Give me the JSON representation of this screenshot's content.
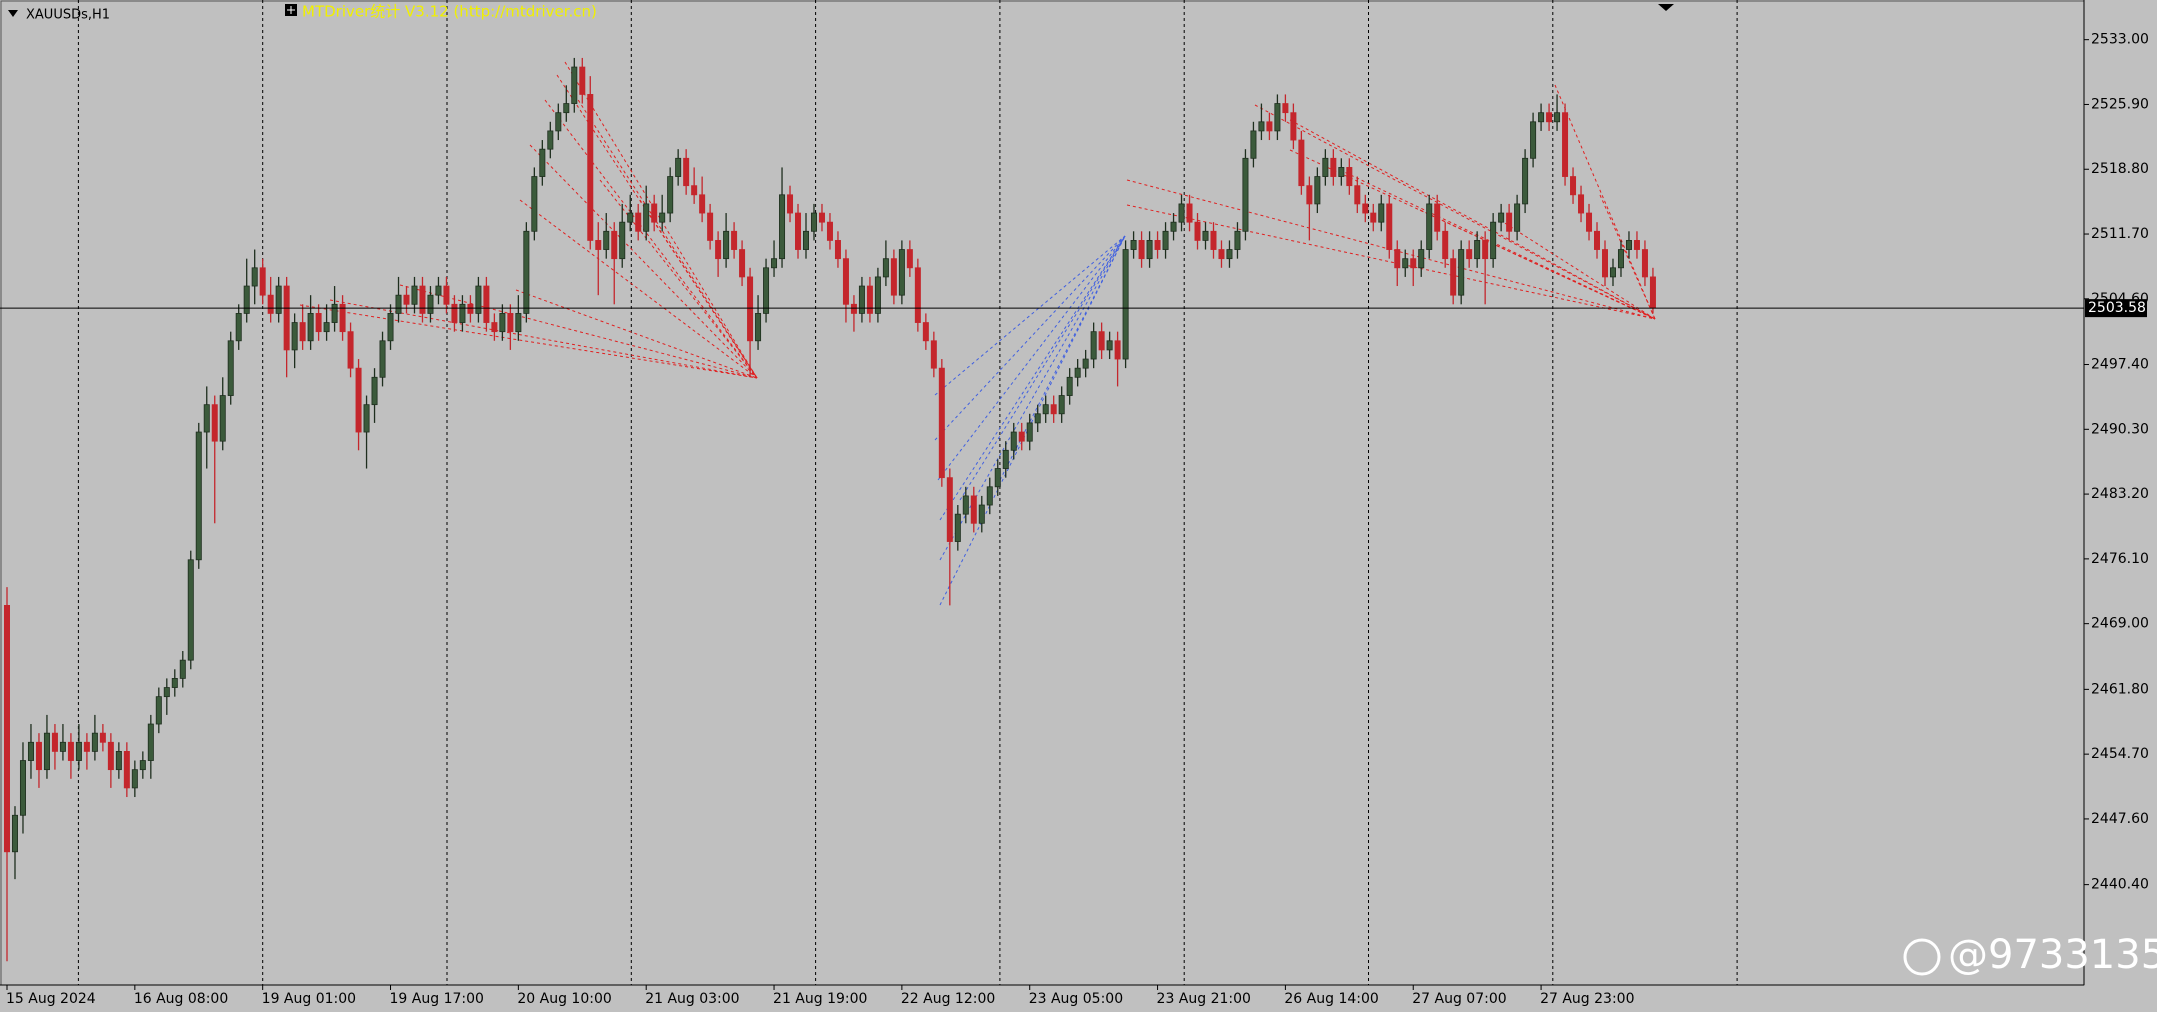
{
  "chart_data": {
    "type": "candlestick",
    "symbol": "XAUUSDs,H1",
    "indicator_label": "MTDriver统计  V3.12 (http://mtdriver.cn)",
    "watermark": "@9733135",
    "up_color": "#3b5a3b",
    "down_color": "#c4262c",
    "categories": [
      "15 Aug 2024",
      null,
      null,
      null,
      null,
      null,
      null,
      null,
      null,
      null,
      null,
      null,
      null,
      null,
      null,
      null,
      "16 Aug 08:00",
      null,
      null,
      null,
      null,
      null,
      null,
      null,
      null,
      null,
      null,
      null,
      null,
      null,
      null,
      null,
      "19 Aug 01:00",
      null,
      null,
      null,
      null,
      null,
      null,
      null,
      null,
      null,
      null,
      null,
      null,
      null,
      null,
      null,
      "19 Aug 17:00",
      null,
      null,
      null,
      null,
      null,
      null,
      null,
      null,
      null,
      null,
      null,
      null,
      null,
      null,
      null,
      "20 Aug 10:00",
      null,
      null,
      null,
      null,
      null,
      null,
      null,
      null,
      null,
      null,
      null,
      null,
      null,
      null,
      null,
      "21 Aug 03:00",
      null,
      null,
      null,
      null,
      null,
      null,
      null,
      null,
      null,
      null,
      null,
      null,
      null,
      null,
      null,
      "21 Aug 19:00",
      null,
      null,
      null,
      null,
      null,
      null,
      null,
      null,
      null,
      null,
      null,
      null,
      null,
      null,
      null,
      "22 Aug 12:00",
      null,
      null,
      null,
      null,
      null,
      null,
      null,
      null,
      null,
      null,
      null,
      null,
      null,
      null,
      null,
      "23 Aug 05:00",
      null,
      null,
      null,
      null,
      null,
      null,
      null,
      null,
      null,
      null,
      null,
      null,
      null,
      null,
      null,
      "23 Aug 21:00",
      null,
      null,
      null,
      null,
      null,
      null,
      null,
      null,
      null,
      null,
      null,
      null,
      null,
      null,
      null,
      "26 Aug 14:00",
      null,
      null,
      null,
      null,
      null,
      null,
      null,
      null,
      null,
      null,
      null,
      null,
      null,
      null,
      null,
      "27 Aug 07:00",
      null,
      null,
      null,
      null,
      null,
      null,
      null,
      null,
      null,
      null,
      null,
      null,
      null,
      null,
      null,
      "27 Aug 23:00",
      null,
      null,
      null,
      null,
      null,
      null,
      null,
      null,
      null,
      null,
      null,
      null,
      null,
      null
    ],
    "ohlc": [
      [
        2471,
        2473,
        2432,
        2444
      ],
      [
        2444,
        2449,
        2441,
        2448
      ],
      [
        2448,
        2456,
        2446,
        2454
      ],
      [
        2454,
        2458,
        2452,
        2456
      ],
      [
        2456,
        2457,
        2451,
        2453
      ],
      [
        2453,
        2459,
        2452,
        2457
      ],
      [
        2457,
        2458,
        2453,
        2455
      ],
      [
        2455,
        2458,
        2454,
        2456
      ],
      [
        2456,
        2457,
        2452,
        2454
      ],
      [
        2454,
        2458,
        2453,
        2456
      ],
      [
        2456,
        2457,
        2453,
        2455
      ],
      [
        2455,
        2459,
        2454,
        2457
      ],
      [
        2457,
        2458,
        2455,
        2456
      ],
      [
        2456,
        2457,
        2451,
        2453
      ],
      [
        2453,
        2456,
        2452,
        2455
      ],
      [
        2455,
        2456,
        2450,
        2451
      ],
      [
        2451,
        2454,
        2450,
        2453
      ],
      [
        2453,
        2455,
        2452,
        2454
      ],
      [
        2454,
        2459,
        2452,
        2458
      ],
      [
        2458,
        2462,
        2457,
        2461
      ],
      [
        2461,
        2463,
        2459,
        2462
      ],
      [
        2462,
        2464,
        2461,
        2463
      ],
      [
        2463,
        2466,
        2462,
        2465
      ],
      [
        2465,
        2477,
        2464,
        2476
      ],
      [
        2476,
        2491,
        2475,
        2490
      ],
      [
        2490,
        2495,
        2486,
        2493
      ],
      [
        2493,
        2494,
        2480,
        2489
      ],
      [
        2489,
        2496,
        2488,
        2494
      ],
      [
        2494,
        2501,
        2493,
        2500
      ],
      [
        2500,
        2504,
        2499,
        2503
      ],
      [
        2503,
        2509,
        2502,
        2506
      ],
      [
        2506,
        2510,
        2504,
        2508
      ],
      [
        2508,
        2509,
        2504,
        2505
      ],
      [
        2505,
        2507,
        2502,
        2503
      ],
      [
        2503,
        2507,
        2502,
        2506
      ],
      [
        2506,
        2507,
        2496,
        2499
      ],
      [
        2499,
        2503,
        2497,
        2502
      ],
      [
        2502,
        2504,
        2499,
        2500
      ],
      [
        2500,
        2505,
        2499,
        2503
      ],
      [
        2503,
        2504,
        2500,
        2501
      ],
      [
        2501,
        2504,
        2500,
        2502
      ],
      [
        2502,
        2506,
        2501,
        2504
      ],
      [
        2504,
        2505,
        2500,
        2501
      ],
      [
        2501,
        2502,
        2496,
        2497
      ],
      [
        2497,
        2498,
        2488,
        2490
      ],
      [
        2490,
        2494,
        2486,
        2493
      ],
      [
        2493,
        2497,
        2491,
        2496
      ],
      [
        2496,
        2501,
        2495,
        2500
      ],
      [
        2500,
        2504,
        2499,
        2503
      ],
      [
        2503,
        2507,
        2502,
        2505
      ],
      [
        2505,
        2506,
        2503,
        2504
      ],
      [
        2504,
        2507,
        2503,
        2506
      ],
      [
        2506,
        2507,
        2502,
        2503
      ],
      [
        2503,
        2506,
        2502,
        2505
      ],
      [
        2505,
        2507,
        2504,
        2506
      ],
      [
        2506,
        2507,
        2503,
        2504
      ],
      [
        2504,
        2505,
        2501,
        2502
      ],
      [
        2502,
        2505,
        2501,
        2504
      ],
      [
        2504,
        2505,
        2502,
        2503
      ],
      [
        2503,
        2507,
        2502,
        2506
      ],
      [
        2506,
        2507,
        2501,
        2502
      ],
      [
        2502,
        2503,
        2500,
        2501
      ],
      [
        2501,
        2504,
        2500,
        2503
      ],
      [
        2503,
        2504,
        2499,
        2501
      ],
      [
        2501,
        2505,
        2500,
        2503
      ],
      [
        2503,
        2513,
        2502,
        2512
      ],
      [
        2512,
        2519,
        2511,
        2518
      ],
      [
        2518,
        2522,
        2517,
        2521
      ],
      [
        2521,
        2524,
        2520,
        2523
      ],
      [
        2523,
        2526,
        2522,
        2525
      ],
      [
        2525,
        2528,
        2524,
        2526
      ],
      [
        2526,
        2531,
        2525,
        2530
      ],
      [
        2530,
        2531,
        2526,
        2527
      ],
      [
        2527,
        2529,
        2510,
        2511
      ],
      [
        2511,
        2513,
        2505,
        2510
      ],
      [
        2510,
        2514,
        2509,
        2512
      ],
      [
        2512,
        2513,
        2504,
        2509
      ],
      [
        2509,
        2515,
        2508,
        2513
      ],
      [
        2513,
        2516,
        2512,
        2514
      ],
      [
        2514,
        2515,
        2511,
        2512
      ],
      [
        2512,
        2517,
        2511,
        2515
      ],
      [
        2515,
        2516,
        2512,
        2513
      ],
      [
        2513,
        2516,
        2512,
        2514
      ],
      [
        2514,
        2519,
        2513,
        2518
      ],
      [
        2518,
        2521,
        2517,
        2520
      ],
      [
        2520,
        2521,
        2516,
        2517
      ],
      [
        2517,
        2519,
        2515,
        2516
      ],
      [
        2516,
        2518,
        2513,
        2514
      ],
      [
        2514,
        2515,
        2510,
        2511
      ],
      [
        2511,
        2512,
        2507,
        2509
      ],
      [
        2509,
        2514,
        2508,
        2512
      ],
      [
        2512,
        2513,
        2509,
        2510
      ],
      [
        2510,
        2511,
        2506,
        2507
      ],
      [
        2507,
        2508,
        2496,
        2500
      ],
      [
        2500,
        2505,
        2499,
        2503
      ],
      [
        2503,
        2509,
        2502,
        2508
      ],
      [
        2508,
        2511,
        2507,
        2509
      ],
      [
        2509,
        2519,
        2508,
        2516
      ],
      [
        2516,
        2517,
        2513,
        2514
      ],
      [
        2514,
        2515,
        2509,
        2510
      ],
      [
        2510,
        2514,
        2509,
        2512
      ],
      [
        2512,
        2515,
        2511,
        2514
      ],
      [
        2514,
        2515,
        2512,
        2513
      ],
      [
        2513,
        2514,
        2510,
        2511
      ],
      [
        2511,
        2512,
        2508,
        2509
      ],
      [
        2509,
        2510,
        2502,
        2504
      ],
      [
        2504,
        2505,
        2501,
        2503
      ],
      [
        2503,
        2507,
        2502,
        2506
      ],
      [
        2506,
        2507,
        2502,
        2503
      ],
      [
        2503,
        2508,
        2502,
        2507
      ],
      [
        2507,
        2511,
        2506,
        2509
      ],
      [
        2509,
        2510,
        2504,
        2505
      ],
      [
        2505,
        2511,
        2504,
        2510
      ],
      [
        2510,
        2511,
        2507,
        2508
      ],
      [
        2508,
        2509,
        2501,
        2502
      ],
      [
        2502,
        2503,
        2499,
        2500
      ],
      [
        2500,
        2501,
        2496,
        2497
      ],
      [
        2497,
        2498,
        2484,
        2485
      ],
      [
        2485,
        2486,
        2471,
        2478
      ],
      [
        2478,
        2482,
        2477,
        2481
      ],
      [
        2481,
        2484,
        2480,
        2483
      ],
      [
        2483,
        2484,
        2479,
        2480
      ],
      [
        2480,
        2483,
        2479,
        2482
      ],
      [
        2482,
        2485,
        2481,
        2484
      ],
      [
        2484,
        2487,
        2483,
        2486
      ],
      [
        2486,
        2489,
        2485,
        2488
      ],
      [
        2488,
        2491,
        2487,
        2490
      ],
      [
        2490,
        2491,
        2488,
        2489
      ],
      [
        2489,
        2492,
        2488,
        2491
      ],
      [
        2491,
        2493,
        2490,
        2492
      ],
      [
        2492,
        2494,
        2491,
        2493
      ],
      [
        2493,
        2494,
        2491,
        2492
      ],
      [
        2492,
        2495,
        2491,
        2494
      ],
      [
        2494,
        2497,
        2493,
        2496
      ],
      [
        2496,
        2498,
        2495,
        2497
      ],
      [
        2497,
        2499,
        2496,
        2498
      ],
      [
        2498,
        2502,
        2497,
        2501
      ],
      [
        2501,
        2502,
        2498,
        2499
      ],
      [
        2499,
        2501,
        2498,
        2500
      ],
      [
        2500,
        2501,
        2495,
        2498
      ],
      [
        2498,
        2511,
        2497,
        2510
      ],
      [
        2510,
        2512,
        2509,
        2511
      ],
      [
        2511,
        2512,
        2508,
        2509
      ],
      [
        2509,
        2512,
        2508,
        2511
      ],
      [
        2511,
        2512,
        2509,
        2510
      ],
      [
        2510,
        2513,
        2509,
        2512
      ],
      [
        2512,
        2514,
        2511,
        2513
      ],
      [
        2513,
        2516,
        2512,
        2515
      ],
      [
        2515,
        2516,
        2512,
        2513
      ],
      [
        2513,
        2514,
        2510,
        2511
      ],
      [
        2511,
        2513,
        2510,
        2512
      ],
      [
        2512,
        2513,
        2509,
        2510
      ],
      [
        2510,
        2511,
        2508,
        2509
      ],
      [
        2509,
        2511,
        2508,
        2510
      ],
      [
        2510,
        2513,
        2509,
        2512
      ],
      [
        2512,
        2521,
        2511,
        2520
      ],
      [
        2520,
        2524,
        2519,
        2523
      ],
      [
        2523,
        2526,
        2522,
        2524
      ],
      [
        2524,
        2525,
        2522,
        2523
      ],
      [
        2523,
        2527,
        2522,
        2526
      ],
      [
        2526,
        2527,
        2524,
        2525
      ],
      [
        2525,
        2526,
        2521,
        2522
      ],
      [
        2522,
        2523,
        2516,
        2517
      ],
      [
        2517,
        2518,
        2511,
        2515
      ],
      [
        2515,
        2519,
        2514,
        2518
      ],
      [
        2518,
        2521,
        2517,
        2520
      ],
      [
        2520,
        2521,
        2517,
        2518
      ],
      [
        2518,
        2520,
        2517,
        2519
      ],
      [
        2519,
        2520,
        2516,
        2517
      ],
      [
        2517,
        2518,
        2514,
        2515
      ],
      [
        2515,
        2516,
        2513,
        2514
      ],
      [
        2514,
        2515,
        2512,
        2513
      ],
      [
        2513,
        2516,
        2512,
        2515
      ],
      [
        2515,
        2516,
        2509,
        2510
      ],
      [
        2510,
        2511,
        2506,
        2508
      ],
      [
        2508,
        2510,
        2507,
        2509
      ],
      [
        2509,
        2510,
        2506,
        2508
      ],
      [
        2508,
        2511,
        2507,
        2510
      ],
      [
        2510,
        2516,
        2509,
        2515
      ],
      [
        2515,
        2516,
        2511,
        2512
      ],
      [
        2512,
        2513,
        2508,
        2509
      ],
      [
        2509,
        2510,
        2504,
        2505
      ],
      [
        2505,
        2511,
        2504,
        2510
      ],
      [
        2510,
        2511,
        2508,
        2509
      ],
      [
        2509,
        2512,
        2508,
        2511
      ],
      [
        2511,
        2512,
        2504,
        2509
      ],
      [
        2509,
        2514,
        2508,
        2513
      ],
      [
        2513,
        2515,
        2512,
        2514
      ],
      [
        2514,
        2515,
        2511,
        2512
      ],
      [
        2512,
        2516,
        2511,
        2515
      ],
      [
        2515,
        2521,
        2514,
        2520
      ],
      [
        2520,
        2525,
        2519,
        2524
      ],
      [
        2524,
        2526,
        2523,
        2525
      ],
      [
        2525,
        2526,
        2523,
        2524
      ],
      [
        2524,
        2527,
        2523,
        2525
      ],
      [
        2525,
        2526,
        2517,
        2518
      ],
      [
        2518,
        2519,
        2515,
        2516
      ],
      [
        2516,
        2517,
        2513,
        2514
      ],
      [
        2514,
        2515,
        2511,
        2512
      ],
      [
        2512,
        2513,
        2509,
        2510
      ],
      [
        2510,
        2511,
        2506,
        2507
      ],
      [
        2507,
        2509,
        2506,
        2508
      ],
      [
        2508,
        2511,
        2507,
        2510
      ],
      [
        2510,
        2512,
        2509,
        2511
      ],
      [
        2511,
        2512,
        2509,
        2510
      ],
      [
        2510,
        2511,
        2506,
        2507
      ],
      [
        2507,
        2508,
        2503,
        2503.58
      ]
    ],
    "ylim": [
      2429.4,
      2536.8
    ],
    "yticks": [
      {
        "value": 2533.0,
        "label": "2533.00"
      },
      {
        "value": 2525.9,
        "label": "2525.90"
      },
      {
        "value": 2518.8,
        "label": "2518.80"
      },
      {
        "value": 2511.7,
        "label": "2511.70"
      },
      {
        "value": 2504.6,
        "label": "2504.60"
      },
      {
        "value": 2497.4,
        "label": "2497.40"
      },
      {
        "value": 2490.3,
        "label": "2490.30"
      },
      {
        "value": 2483.2,
        "label": "2483.20"
      },
      {
        "value": 2476.1,
        "label": "2476.10"
      },
      {
        "value": 2469.0,
        "label": "2469.00"
      },
      {
        "value": 2461.8,
        "label": "2461.80"
      },
      {
        "value": 2454.7,
        "label": "2454.70"
      },
      {
        "value": 2447.6,
        "label": "2447.60"
      },
      {
        "value": 2440.4,
        "label": "2440.40"
      }
    ],
    "current_price": 2503.58,
    "grid": false
  }
}
